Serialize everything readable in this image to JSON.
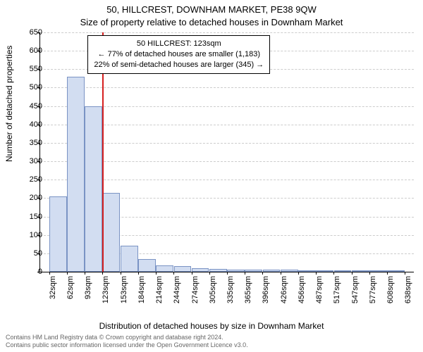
{
  "chart": {
    "type": "histogram",
    "title_main": "50, HILLCREST, DOWNHAM MARKET, PE38 9QW",
    "title_sub": "Size of property relative to detached houses in Downham Market",
    "y_axis_label": "Number of detached properties",
    "x_axis_label": "Distribution of detached houses by size in Downham Market",
    "background_color": "#ffffff",
    "grid_color": "#cccccc",
    "bar_fill_color": "#d2ddf1",
    "bar_border_color": "#7a93c4",
    "ref_line_color": "#d62020",
    "title_fontsize": 13,
    "axis_label_fontsize": 12,
    "tick_fontsize": 11,
    "ylim_min": 0,
    "ylim_max": 650,
    "y_ticks": [
      0,
      50,
      100,
      150,
      200,
      250,
      300,
      350,
      400,
      450,
      500,
      550,
      600,
      650
    ],
    "x_categories": [
      "32sqm",
      "62sqm",
      "93sqm",
      "123sqm",
      "153sqm",
      "184sqm",
      "214sqm",
      "244sqm",
      "274sqm",
      "305sqm",
      "335sqm",
      "365sqm",
      "396sqm",
      "426sqm",
      "456sqm",
      "487sqm",
      "517sqm",
      "547sqm",
      "577sqm",
      "608sqm",
      "638sqm"
    ],
    "values": [
      205,
      530,
      450,
      215,
      70,
      35,
      18,
      15,
      10,
      8,
      5,
      6,
      5,
      5,
      3,
      2,
      2,
      2,
      2,
      2
    ],
    "n_bars": 20,
    "ref_line_bin_index": 3,
    "annotation": {
      "line1": "50 HILLCREST: 123sqm",
      "line2": "← 77% of detached houses are smaller (1,183)",
      "line3": "22% of semi-detached houses are larger (345) →"
    },
    "footer_line1": "Contains HM Land Registry data © Crown copyright and database right 2024.",
    "footer_line2": "Contains public sector information licensed under the Open Government Licence v3.0."
  }
}
